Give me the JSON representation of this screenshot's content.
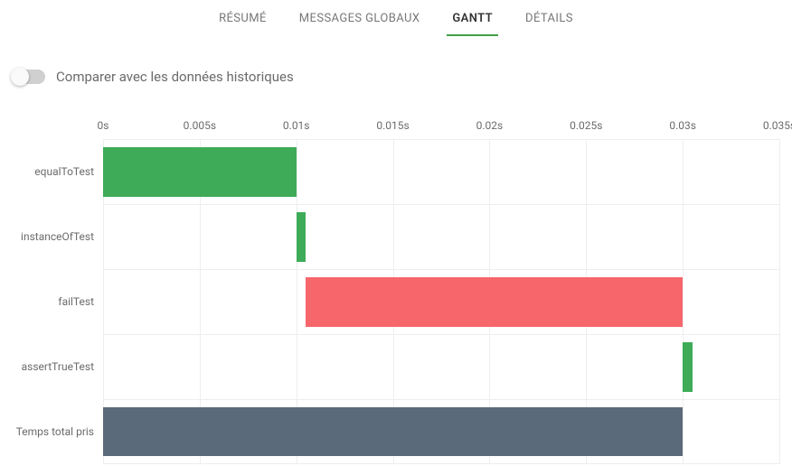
{
  "accent_color": "#43a047",
  "tabs": [
    {
      "label": "RÉSUMÉ",
      "active": false
    },
    {
      "label": "MESSAGES GLOBAUX",
      "active": false
    },
    {
      "label": "GANTT",
      "active": true
    },
    {
      "label": "DÉTAILS",
      "active": false
    }
  ],
  "toggle": {
    "label": "Comparer avec les données historiques",
    "checked": false
  },
  "gantt": {
    "type": "gantt-bar",
    "x_unit": "s",
    "xlim": [
      0,
      0.035
    ],
    "xtick_step": 0.005,
    "xticks": [
      {
        "v": 0.0,
        "label": "0s"
      },
      {
        "v": 0.005,
        "label": "0.005s"
      },
      {
        "v": 0.01,
        "label": "0.01s"
      },
      {
        "v": 0.015,
        "label": "0.015s"
      },
      {
        "v": 0.02,
        "label": "0.02s"
      },
      {
        "v": 0.025,
        "label": "0.025s"
      },
      {
        "v": 0.03,
        "label": "0.03s"
      },
      {
        "v": 0.035,
        "label": "0.035s"
      }
    ],
    "grid_color": "#eeeeee",
    "background_color": "#ffffff",
    "label_fontsize": 12,
    "label_color": "#6b6b6b",
    "bar_vpad": 8,
    "rows": [
      {
        "label": "equalToTest",
        "start": 0.0,
        "end": 0.01,
        "color": "#3eab58"
      },
      {
        "label": "instanceOfTest",
        "start": 0.01,
        "end": 0.0105,
        "color": "#3eab58"
      },
      {
        "label": "failTest",
        "start": 0.0105,
        "end": 0.03,
        "color": "#f7666b"
      },
      {
        "label": "assertTrueTest",
        "start": 0.03,
        "end": 0.0305,
        "color": "#3eab58"
      },
      {
        "label": "Temps total pris",
        "start": 0.0,
        "end": 0.03,
        "color": "#5b6a7a"
      }
    ]
  }
}
